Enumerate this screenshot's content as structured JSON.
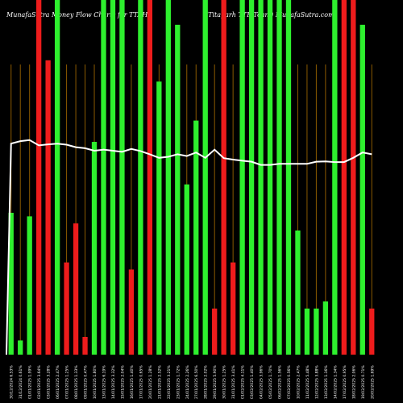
{
  "header": {
    "left": "MunafaSutra Money Flow Charts for TTAH",
    "right": "(Titagarh TTF Team) MunafaSutra.com"
  },
  "chart_data": {
    "type": "bar",
    "title": "MunafaSutra Money Flow Charts for TTAH",
    "subtitle": "(Titagarh TTF Team) MunafaSutra.com",
    "colors": {
      "up": "#2ef02e",
      "down": "#ee1c1c",
      "line": "#ffffff",
      "divider": "#8b5a00",
      "background": "#000000"
    },
    "ylim": [
      0,
      100
    ],
    "grid": false,
    "legend": "none",
    "categories": [
      "30/12/2024 6.53%",
      "31/12/2024 0.61%",
      "01/01/2025 1.99%",
      "02/01/2025 3.64%",
      "03/01/2025 3.28%",
      "06/01/2025 2.47%",
      "07/01/2025 1.25%",
      "08/01/2025 1.33%",
      "09/01/2025 0.47%",
      "10/01/2025 1.80%",
      "13/01/2025 6.19%",
      "14/01/2025 3.32%",
      "15/01/2025 2.04%",
      "16/01/2025 1.40%",
      "17/01/2025 0.65%",
      "20/01/2025 1.28%",
      "21/01/2025 2.52%",
      "22/01/2025 3.21%",
      "23/01/2025 1.72%",
      "24/01/2025 2.26%",
      "27/01/2025 6.50%",
      "28/01/2025 2.02%",
      "29/01/2025 5.90%",
      "30/01/2025 1.25%",
      "31/01/2025 3.41%",
      "01/02/2025 4.11%",
      "03/02/2025 1.40%",
      "04/02/2025 3.96%",
      "05/02/2025 1.70%",
      "06/02/2025 1.56%",
      "07/02/2025 0.56%",
      "10/02/2025 2.47%",
      "11/02/2025 5.48%",
      "12/02/2025 3.88%",
      "13/02/2025 1.16%",
      "14/02/2025 1.34%",
      "17/02/2025 0.95%",
      "18/02/2025 2.06%",
      "19/02/2025 0.71%",
      "20/02/2025 1.69%"
    ],
    "bar_colors": [
      "up",
      "up",
      "up",
      "down",
      "down",
      "up",
      "down",
      "down",
      "down",
      "up",
      "up",
      "up",
      "up",
      "down",
      "up",
      "down",
      "up",
      "up",
      "up",
      "up",
      "up",
      "up",
      "down",
      "down",
      "down",
      "up",
      "up",
      "up",
      "up",
      "up",
      "up",
      "up",
      "up",
      "up",
      "up",
      "up",
      "down",
      "down",
      "up",
      "down"
    ],
    "values": [
      40,
      4,
      39,
      100,
      83,
      100,
      26,
      37,
      5,
      60,
      100,
      100,
      100,
      24,
      100,
      100,
      77,
      100,
      93,
      48,
      66,
      100,
      13,
      100,
      26,
      100,
      100,
      100,
      100,
      100,
      100,
      35,
      13,
      13,
      15,
      100,
      100,
      100,
      93,
      13
    ],
    "line_values": [
      59.5,
      60.2,
      60.5,
      59.0,
      59.3,
      59.5,
      59.2,
      58.5,
      58.2,
      57.5,
      57.8,
      57.5,
      57.2,
      58.0,
      57.4,
      56.5,
      55.5,
      55.8,
      56.5,
      56.0,
      57.0,
      55.5,
      57.8,
      55.4,
      55.0,
      54.7,
      54.4,
      53.5,
      53.5,
      53.8,
      53.8,
      53.8,
      53.8,
      54.4,
      54.5,
      54.3,
      54.3,
      55.5,
      57.0,
      56.5
    ]
  }
}
